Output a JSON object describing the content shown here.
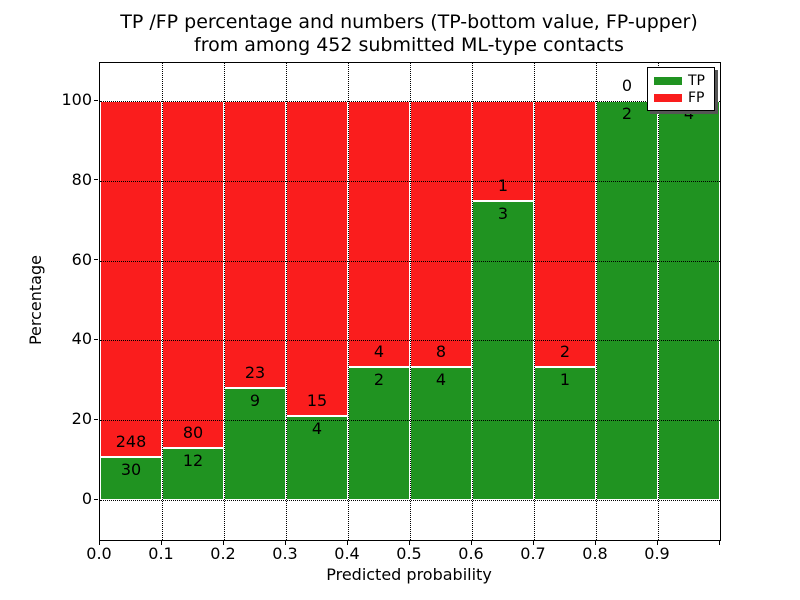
{
  "title": {
    "line1": "TP /FP percentage and numbers (TP-bottom value, FP-upper)",
    "line2": "from among 452 submitted ML-type contacts"
  },
  "chart_data": {
    "type": "bar",
    "subtype": "stacked-percentage",
    "title": "TP /FP percentage and numbers (TP-bottom value, FP-upper) from among 452 submitted ML-type contacts",
    "xlabel": "Predicted probability",
    "ylabel": "Percentage",
    "total_contacts": 452,
    "x_tick_labels": [
      "0.0",
      "0.1",
      "0.2",
      "0.3",
      "0.4",
      "0.5",
      "0.6",
      "0.7",
      "0.8",
      "0.9"
    ],
    "y_tick_values": [
      0,
      20,
      40,
      60,
      80,
      100
    ],
    "ylim_shown": [
      -10,
      110
    ],
    "grid": "dotted, drawn over bars",
    "legend_position": "upper right",
    "categories": [
      "0.0-0.1",
      "0.1-0.2",
      "0.2-0.3",
      "0.3-0.4",
      "0.4-0.5",
      "0.5-0.6",
      "0.6-0.7",
      "0.7-0.8",
      "0.8-0.9",
      "0.9-1.0"
    ],
    "series": [
      {
        "name": "TP",
        "color": "#209321",
        "values": [
          30,
          12,
          9,
          4,
          2,
          4,
          3,
          1,
          2,
          4
        ]
      },
      {
        "name": "FP",
        "color": "#fa1d1d",
        "values": [
          248,
          80,
          23,
          15,
          4,
          8,
          1,
          2,
          0,
          0
        ]
      }
    ],
    "bins": [
      {
        "tp": 30,
        "fp": 248
      },
      {
        "tp": 12,
        "fp": 80
      },
      {
        "tp": 9,
        "fp": 23
      },
      {
        "tp": 4,
        "fp": 15
      },
      {
        "tp": 2,
        "fp": 4
      },
      {
        "tp": 4,
        "fp": 8
      },
      {
        "tp": 3,
        "fp": 1
      },
      {
        "tp": 1,
        "fp": 2
      },
      {
        "tp": 2,
        "fp": 0
      },
      {
        "tp": 4,
        "fp": 0,
        "show_fp_label": false
      }
    ],
    "legend": [
      {
        "label": "TP",
        "color": "#209321"
      },
      {
        "label": "FP",
        "color": "#fa1d1d"
      }
    ]
  }
}
